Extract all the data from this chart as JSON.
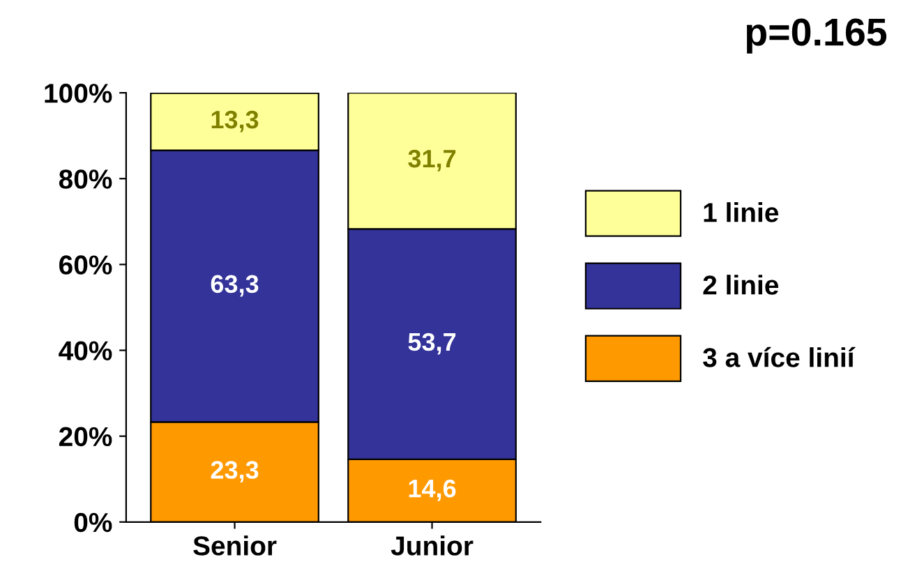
{
  "chart_data": {
    "type": "bar",
    "stacked": true,
    "title": "p=0.165",
    "categories": [
      "Senior",
      "Junior"
    ],
    "series": [
      {
        "name": "3 a více linií",
        "color": "#ff9900",
        "values": [
          23.3,
          14.6
        ],
        "value_labels": [
          "23,3",
          "14,6"
        ]
      },
      {
        "name": "2 linie",
        "color": "#333399",
        "values": [
          63.3,
          53.7
        ],
        "value_labels": [
          "63,3",
          "53,7"
        ]
      },
      {
        "name": "1 linie",
        "color": "#ffff99",
        "values": [
          13.3,
          31.7
        ],
        "value_labels": [
          "13,3",
          "31,7"
        ]
      }
    ],
    "ylim": [
      0,
      100
    ],
    "yticks": [
      {
        "value": 0,
        "label": "0%"
      },
      {
        "value": 20,
        "label": "20%"
      },
      {
        "value": 40,
        "label": "40%"
      },
      {
        "value": 60,
        "label": "60%"
      },
      {
        "value": 80,
        "label": "80%"
      },
      {
        "value": 100,
        "label": "100%"
      }
    ],
    "grid": false,
    "legend": "right"
  }
}
